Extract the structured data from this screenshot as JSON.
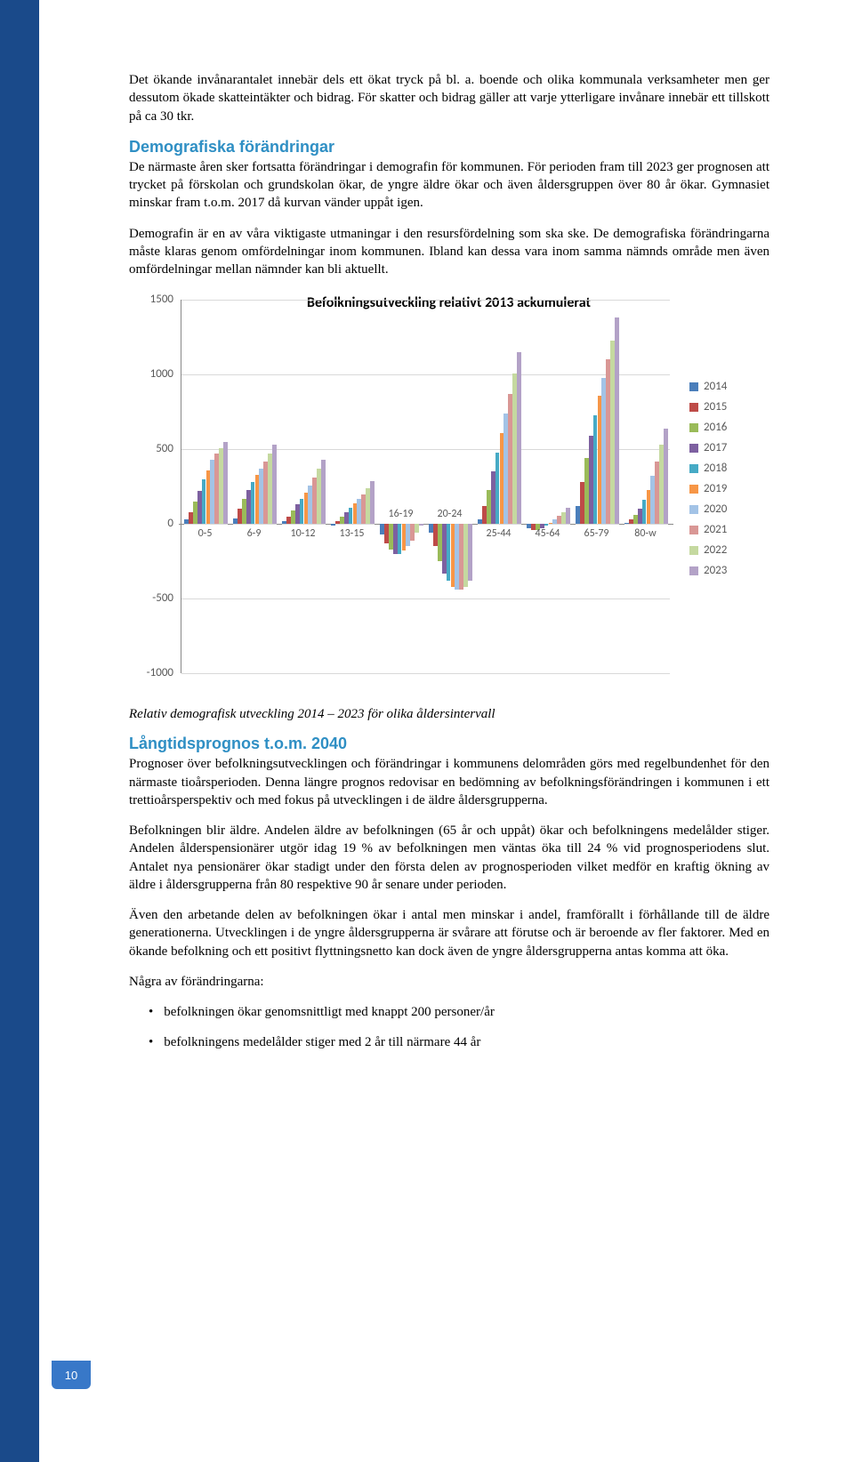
{
  "pageNumber": "10",
  "para1": "Det ökande invånarantalet innebär dels ett ökat tryck på bl. a. boende och olika kommunala verksamheter men ger dessutom ökade skatteintäkter och bidrag. För skatter och bidrag gäller att varje ytterligare invånare innebär ett tillskott på ca 30 tkr.",
  "heading1": "Demografiska förändringar",
  "para2": "De närmaste åren sker fortsatta förändringar i demografin för kommunen. För perioden fram till 2023 ger prognosen att trycket på förskolan och grundskolan ökar, de yngre äldre ökar och även åldersgruppen över 80 år ökar. Gymnasiet minskar fram t.o.m. 2017 då kurvan vänder uppåt igen.",
  "para3": "Demografin är en av våra viktigaste utmaningar i den resursfördelning som ska ske. De demografiska förändringarna måste klaras genom omfördelningar inom kommunen. Ibland kan dessa vara inom samma nämnds område men även omfördelningar mellan nämnder kan bli aktuellt.",
  "caption1": "Relativ demografisk utveckling 2014 – 2023 för olika åldersintervall",
  "heading2": "Långtidsprognos t.o.m. 2040",
  "para4": "Prognoser över befolkningsutvecklingen och förändringar i kommunens delområden görs med regelbundenhet för den närmaste tioårsperioden. Denna längre prognos redovisar en bedömning av befolkningsförändringen i kommunen i ett trettioårsperspektiv och med fokus på utvecklingen i de äldre åldersgrupperna.",
  "para5": "Befolkningen blir äldre. Andelen äldre av befolkningen (65 år och uppåt) ökar och befolkningens medelålder stiger. Andelen ålderspensionärer utgör idag 19 % av befolkningen men väntas öka till 24 % vid prognosperiodens slut. Antalet nya pensionärer ökar stadigt under den första delen av prognosperioden vilket medför en kraftig ökning av äldre i åldersgrupperna från 80 respektive 90 år senare under perioden.",
  "para6": "Även den arbetande delen av befolkningen ökar i antal men minskar i andel, framförallt i förhållande till de äldre generationerna. Utvecklingen i de yngre åldersgrupperna är svårare att förutse och är beroende av fler faktorer. Med en ökande befolkning och ett positivt flyttningsnetto kan dock även de yngre åldersgrupperna antas komma att öka.",
  "listIntro": "Några av förändringarna:",
  "bullets": [
    "befolkningen ökar genomsnittligt med knappt 200 personer/år",
    "befolkningens medelålder stiger med 2 år till närmare 44 år"
  ],
  "chart": {
    "title": "Befolkningsutveckling relativt 2013 ackumulerat",
    "ylim": [
      -1000,
      1500
    ],
    "yticks": [
      -1000,
      -500,
      0,
      500,
      1000,
      1500
    ],
    "categories": [
      "0-5",
      "6-9",
      "10-12",
      "13-15",
      "16-19",
      "20-24",
      "25-44",
      "45-64",
      "65-79",
      "80-w"
    ],
    "series_colors": [
      "#4a7ebb",
      "#be4b48",
      "#9abb59",
      "#7d60a0",
      "#46aac5",
      "#f79646",
      "#a3c3e6",
      "#d99795",
      "#c5d9a0",
      "#b3a2c7"
    ],
    "series_labels": [
      "2014",
      "2015",
      "2016",
      "2017",
      "2018",
      "2019",
      "2020",
      "2021",
      "2022",
      "2023"
    ],
    "data": {
      "0-5": [
        30,
        80,
        150,
        220,
        300,
        360,
        430,
        470,
        510,
        550
      ],
      "6-9": [
        40,
        100,
        170,
        230,
        280,
        330,
        370,
        420,
        470,
        530
      ],
      "10-12": [
        20,
        50,
        90,
        130,
        170,
        210,
        260,
        310,
        370,
        430
      ],
      "13-15": [
        -10,
        20,
        50,
        80,
        110,
        140,
        170,
        200,
        240,
        290
      ],
      "16-19": [
        -70,
        -130,
        -170,
        -200,
        -200,
        -180,
        -150,
        -110,
        -60,
        -10
      ],
      "20-24": [
        -60,
        -150,
        -250,
        -330,
        -380,
        -420,
        -440,
        -440,
        -420,
        -380
      ],
      "25-44": [
        30,
        120,
        230,
        350,
        480,
        610,
        740,
        870,
        1010,
        1150
      ],
      "45-64": [
        -30,
        -40,
        -40,
        -30,
        -10,
        5,
        30,
        55,
        80,
        110
      ],
      "65-79": [
        120,
        280,
        440,
        590,
        730,
        860,
        980,
        1100,
        1230,
        1380
      ],
      "80-w": [
        10,
        30,
        60,
        100,
        160,
        230,
        320,
        420,
        530,
        640
      ]
    }
  }
}
